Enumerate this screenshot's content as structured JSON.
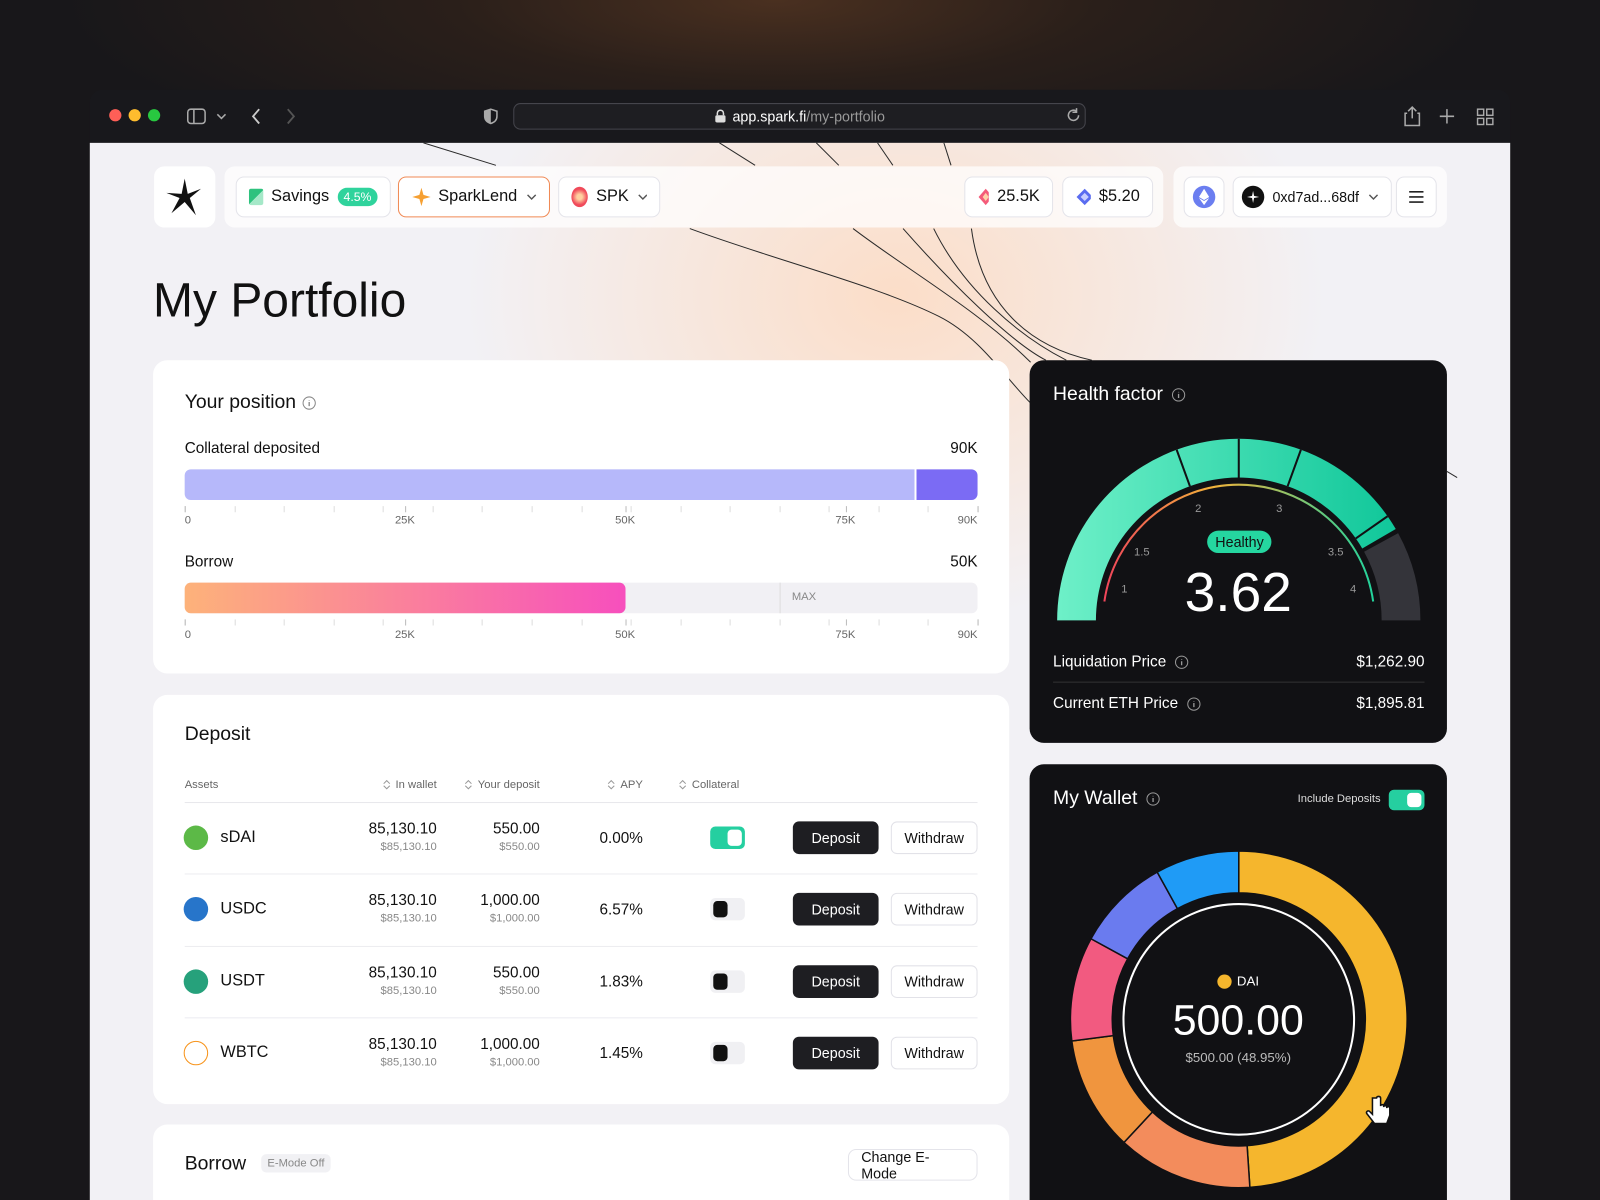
{
  "browser": {
    "url_host": "app.spark.fi",
    "url_path": "/my-portfolio"
  },
  "nav": {
    "savings": "Savings",
    "savings_rate": "4.5%",
    "sparklend": "SparkLend",
    "spk": "SPK",
    "token_balance": "25.5K",
    "spk_balance": "$5.20",
    "address": "0xd7ad...68df"
  },
  "page_title": "My Portfolio",
  "position": {
    "title": "Your position",
    "scale": [
      {
        "value": 0,
        "label": "0"
      },
      {
        "value": 25000,
        "label": "25K"
      },
      {
        "value": 50000,
        "label": "50K"
      },
      {
        "value": 75000,
        "label": "75K"
      },
      {
        "value": 90000,
        "label": "90K"
      }
    ],
    "collateral": {
      "label": "Collateral deposited",
      "value": 90000,
      "value_label": "90K"
    },
    "borrow": {
      "label": "Borrow",
      "value": 50000,
      "value_label": "50K",
      "max_label": "MAX"
    }
  },
  "deposit": {
    "title": "Deposit",
    "columns": [
      "Assets",
      "In wallet",
      "Your deposit",
      "APY",
      "Collateral"
    ],
    "rows": [
      {
        "asset": "sDAI",
        "in_wallet": "85,130.10",
        "in_wallet_usd": "$85,130.10",
        "deposit": "550.00",
        "deposit_usd": "$550.00",
        "apy": "0.00%",
        "collateral": true,
        "deposit_button": "Deposit",
        "withdraw_button": "Withdraw"
      },
      {
        "asset": "USDC",
        "in_wallet": "85,130.10",
        "in_wallet_usd": "$85,130.10",
        "deposit": "1,000.00",
        "deposit_usd": "$1,000.00",
        "apy": "6.57%",
        "collateral": false,
        "deposit_button": "Deposit",
        "withdraw_button": "Withdraw"
      },
      {
        "asset": "USDT",
        "in_wallet": "85,130.10",
        "in_wallet_usd": "$85,130.10",
        "deposit": "550.00",
        "deposit_usd": "$550.00",
        "apy": "1.83%",
        "collateral": false,
        "deposit_button": "Deposit",
        "withdraw_button": "Withdraw"
      },
      {
        "asset": "WBTC",
        "in_wallet": "85,130.10",
        "in_wallet_usd": "$85,130.10",
        "deposit": "1,000.00",
        "deposit_usd": "$1,000.00",
        "apy": "1.45%",
        "collateral": false,
        "deposit_button": "Deposit",
        "withdraw_button": "Withdraw"
      }
    ]
  },
  "borrow": {
    "title": "Borrow",
    "emode": "E-Mode Off",
    "button": "Change E-Mode"
  },
  "health": {
    "title": "Health factor",
    "status": "Healthy",
    "value": 3.62,
    "ticks": [
      1,
      1.5,
      2,
      3,
      3.5,
      4
    ],
    "liquidation_label": "Liquidation Price",
    "liquidation_value": "$1,262.90",
    "eth_label": "Current ETH Price",
    "eth_value": "$1,895.81"
  },
  "wallet": {
    "title": "My Wallet",
    "include_label": "Include Deposits",
    "include": true,
    "asset": "DAI",
    "amount": "500.00",
    "amount_detail": "$500.00 (48.95%)",
    "shares": [
      48.95,
      13,
      11,
      10,
      9,
      8.05
    ],
    "colors": [
      "#f5b62d",
      "#f38c5c",
      "#f0953e",
      "#f25a80",
      "#6a7bef",
      "#1f9bf6"
    ]
  }
}
